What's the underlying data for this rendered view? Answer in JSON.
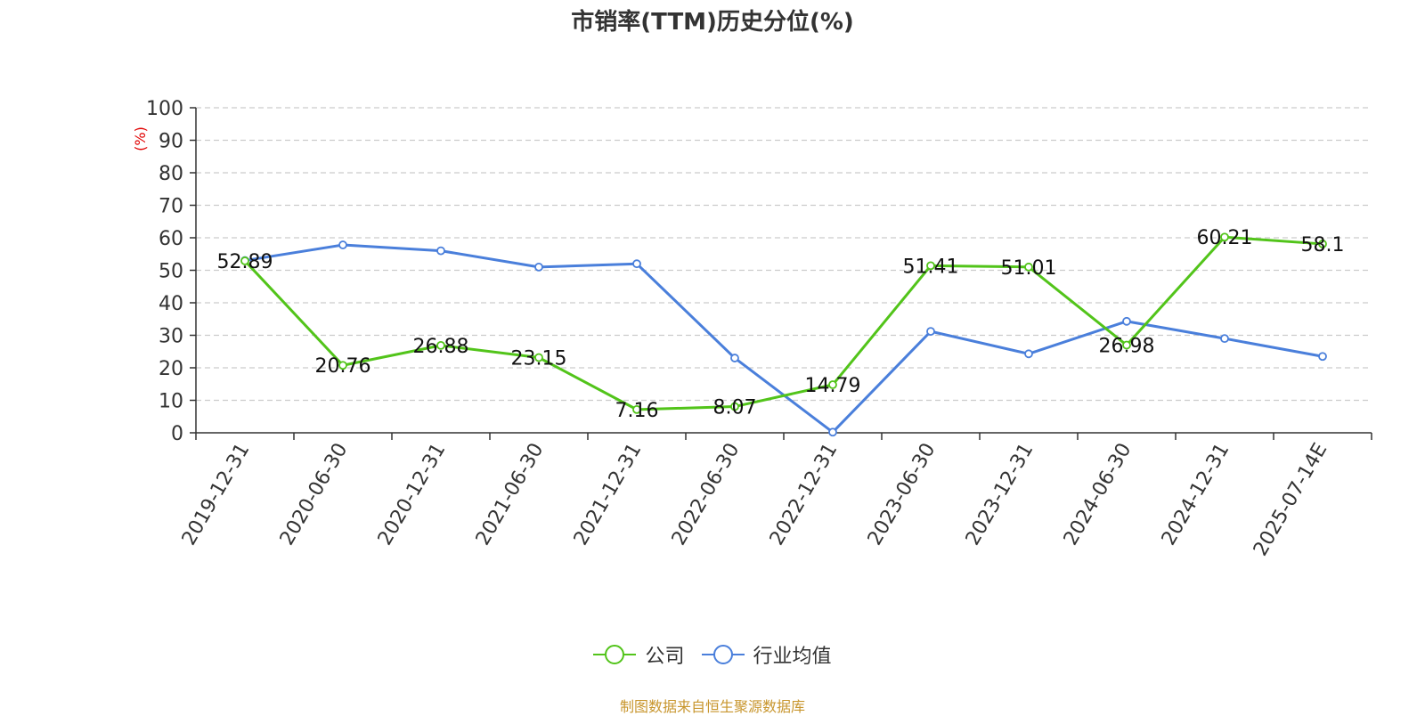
{
  "chart_data": {
    "type": "line",
    "title": "市销率(TTM)历史分位(%)",
    "ylabel": "(%)",
    "ylim": [
      0,
      100
    ],
    "yticks": [
      0,
      10,
      20,
      30,
      40,
      50,
      60,
      70,
      80,
      90,
      100
    ],
    "grid": true,
    "legend_position": "bottom",
    "categories": [
      "2019-12-31",
      "2020-06-30",
      "2020-12-31",
      "2021-06-30",
      "2021-12-31",
      "2022-06-30",
      "2022-12-31",
      "2023-06-30",
      "2023-12-31",
      "2024-06-30",
      "2024-12-31",
      "2025-07-14E"
    ],
    "series": [
      {
        "name": "公司",
        "color": "#52c41a",
        "values": [
          52.89,
          20.76,
          26.88,
          23.15,
          7.16,
          8.07,
          14.79,
          51.41,
          51.01,
          26.98,
          60.21,
          58.1
        ],
        "labels": [
          "52.89",
          "20.76",
          "26.88",
          "23.15",
          "7.16",
          "8.07",
          "14.79",
          "51.41",
          "51.01",
          "26.98",
          "60.21",
          "58.1"
        ]
      },
      {
        "name": "行业均值",
        "color": "#4a7fdb",
        "values": [
          53.0,
          57.8,
          56.0,
          51.0,
          52.0,
          23.0,
          0.2,
          31.2,
          24.3,
          34.3,
          29.0,
          23.5
        ]
      }
    ]
  },
  "source": "制图数据来自恒生聚源数据库"
}
